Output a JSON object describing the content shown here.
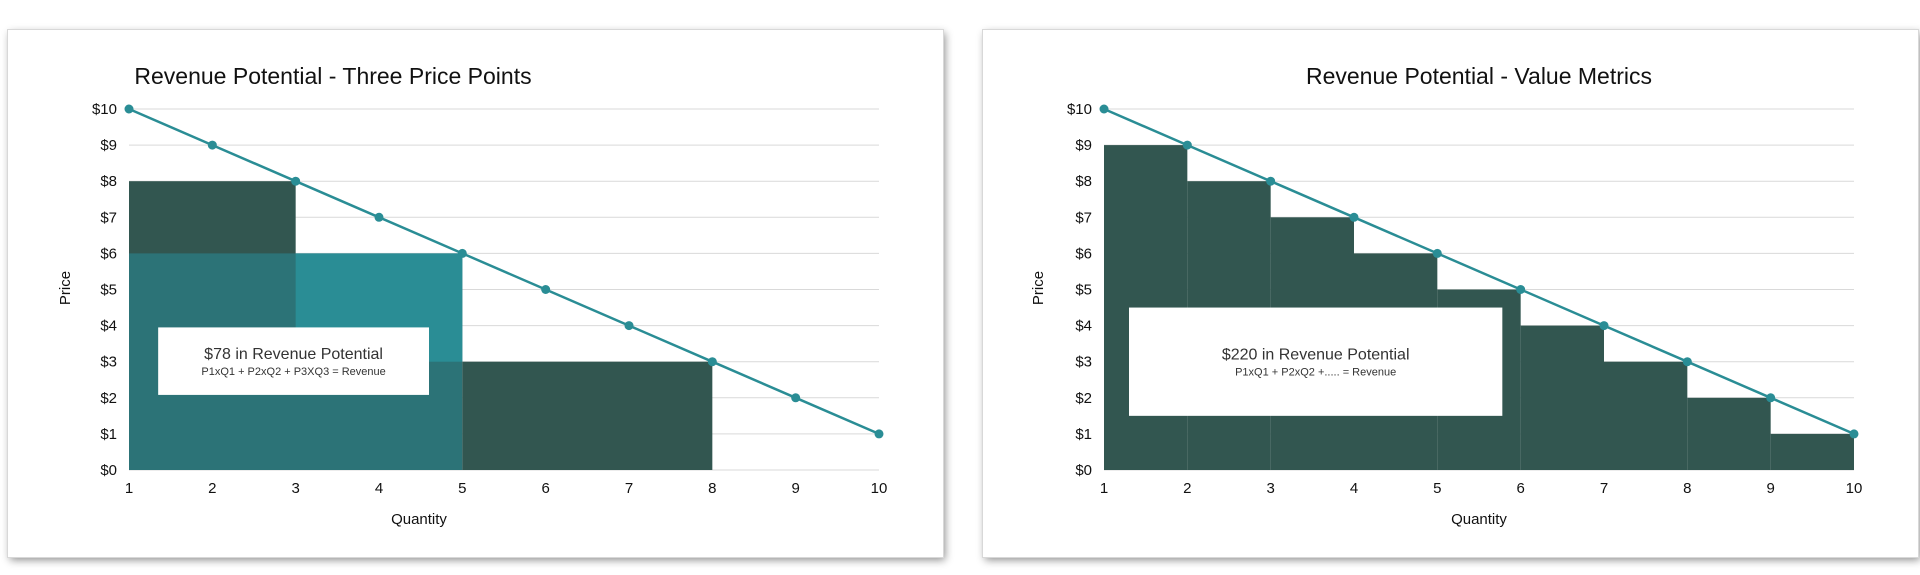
{
  "colors": {
    "line": "#2a8d95",
    "dark": "#325650",
    "mid": "#2c7377",
    "teal": "#2a8d95",
    "box": "#ffffff",
    "grid": "#d9d9d9"
  },
  "chart_data": [
    {
      "type": "line",
      "title": "Revenue Potential - Three Price Points",
      "xlabel": "Quantity",
      "ylabel": "Price",
      "xlim": [
        1,
        10
      ],
      "ylim": [
        0,
        10
      ],
      "x_ticks": [
        "1",
        "2",
        "3",
        "4",
        "5",
        "6",
        "7",
        "8",
        "9",
        "10"
      ],
      "y_ticks": [
        "$0",
        "$1",
        "$2",
        "$3",
        "$4",
        "$5",
        "$6",
        "$7",
        "$8",
        "$9",
        "$10"
      ],
      "grid": "horizontal",
      "series": [
        {
          "x": [
            1,
            2,
            3,
            4,
            5,
            6,
            7,
            8,
            9,
            10
          ],
          "y": [
            10,
            9,
            8,
            7,
            6,
            5,
            4,
            3,
            2,
            1
          ]
        }
      ],
      "rects": [
        {
          "x0": 1,
          "x1": 3,
          "y0": 0,
          "y1": 8,
          "color": "dark"
        },
        {
          "x0": 1,
          "x1": 5,
          "y0": 0,
          "y1": 6,
          "color": "mid"
        },
        {
          "x0": 3,
          "x1": 5,
          "y0": 3,
          "y1": 6,
          "color": "teal"
        },
        {
          "x0": 5,
          "x1": 8,
          "y0": 0,
          "y1": 3,
          "color": "dark"
        }
      ],
      "annotation": {
        "main": "$78 in Revenue Potential",
        "sub": "P1xQ1 + P2xQ2 + P3XQ3 = Revenue",
        "x0": 1.35,
        "x1": 4.6,
        "y0": 2.08,
        "y1": 3.95
      }
    },
    {
      "type": "line",
      "title": "Revenue Potential - Value Metrics",
      "xlabel": "Quantity",
      "ylabel": "Price",
      "xlim": [
        1,
        10
      ],
      "ylim": [
        0,
        10
      ],
      "x_ticks": [
        "1",
        "2",
        "3",
        "4",
        "5",
        "6",
        "7",
        "8",
        "9",
        "10"
      ],
      "y_ticks": [
        "$0",
        "$1",
        "$2",
        "$3",
        "$4",
        "$5",
        "$6",
        "$7",
        "$8",
        "$9",
        "$10"
      ],
      "grid": "horizontal",
      "series": [
        {
          "x": [
            1,
            2,
            3,
            4,
            5,
            6,
            7,
            8,
            9,
            10
          ],
          "y": [
            10,
            9,
            8,
            7,
            6,
            5,
            4,
            3,
            2,
            1
          ]
        }
      ],
      "rects": [
        {
          "x0": 1,
          "x1": 2,
          "y0": 0,
          "y1": 9,
          "color": "dark"
        },
        {
          "x0": 2,
          "x1": 3,
          "y0": 0,
          "y1": 8,
          "color": "dark"
        },
        {
          "x0": 3,
          "x1": 4,
          "y0": 0,
          "y1": 7,
          "color": "dark"
        },
        {
          "x0": 4,
          "x1": 5,
          "y0": 0,
          "y1": 6,
          "color": "dark"
        },
        {
          "x0": 5,
          "x1": 6,
          "y0": 0,
          "y1": 5,
          "color": "dark"
        },
        {
          "x0": 6,
          "x1": 7,
          "y0": 0,
          "y1": 4,
          "color": "dark"
        },
        {
          "x0": 7,
          "x1": 8,
          "y0": 0,
          "y1": 3,
          "color": "dark"
        },
        {
          "x0": 8,
          "x1": 9,
          "y0": 0,
          "y1": 2,
          "color": "dark"
        },
        {
          "x0": 9,
          "x1": 10,
          "y0": 0,
          "y1": 1,
          "color": "dark"
        }
      ],
      "annotation": {
        "main": "$220 in Revenue Potential",
        "sub": "P1xQ1 + P2xQ2 +..... = Revenue",
        "x0": 1.3,
        "x1": 5.78,
        "y0": 1.5,
        "y1": 4.5
      }
    }
  ]
}
